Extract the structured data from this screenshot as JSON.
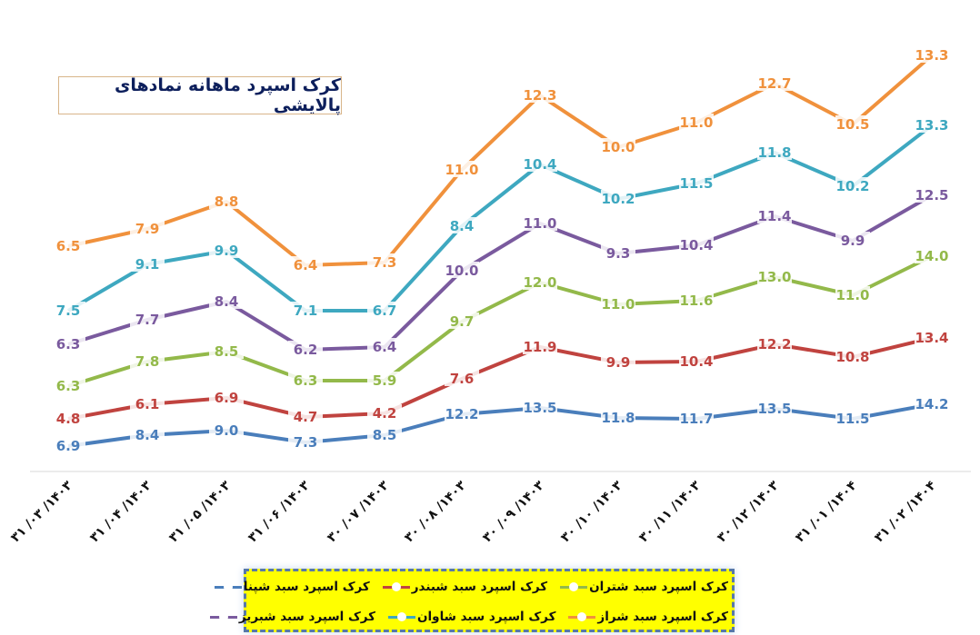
{
  "chart_data": {
    "type": "line",
    "title": "کرک اسپرد ماهانه نمادهای پالایشی",
    "xlabel": "",
    "ylabel": "",
    "grid": false,
    "legend_position": "bottom",
    "categories": [
      "۱۴۰۳/۰۳/۳۱",
      "۱۴۰۳/۰۴/۳۱",
      "۱۴۰۳/۰۵/۳۱",
      "۱۴۰۳/۰۶/۳۱",
      "۱۴۰۳/۰۷/۳۰",
      "۱۴۰۳/۰۸/۳۰",
      "۱۴۰۳/۰۹/۳۰",
      "۱۴۰۳/۱۰/۳۰",
      "۱۴۰۳/۱۱/۳۰",
      "۱۴۰۳/۱۲/۳۰",
      "۱۴۰۴/۰۱/۳۱",
      "۱۴۰۴/۰۲/۳۱"
    ],
    "series": [
      {
        "name": "کرک اسپرد سبد شراز",
        "color": "#f0913c",
        "values": [
          6.5,
          7.9,
          8.8,
          6.4,
          7.3,
          11.0,
          12.3,
          10.0,
          11.0,
          12.7,
          10.5,
          13.3
        ]
      },
      {
        "name": "کرک اسپرد سبد شاوان",
        "color": "#3ea8c0",
        "values": [
          7.5,
          9.1,
          9.9,
          7.1,
          6.7,
          8.4,
          10.4,
          10.2,
          11.5,
          11.8,
          10.2,
          13.3
        ]
      },
      {
        "name": "کرک اسپرد سبد شبریز",
        "color": "#7a5a9e",
        "values": [
          6.3,
          7.7,
          8.4,
          6.2,
          6.4,
          10.0,
          11.0,
          9.3,
          10.4,
          11.4,
          9.9,
          12.5
        ]
      },
      {
        "name": "کرک اسپرد سبد شتران",
        "color": "#93b94a",
        "values": [
          6.3,
          7.8,
          8.5,
          6.3,
          5.9,
          9.7,
          12.0,
          11.0,
          11.6,
          13.0,
          11.0,
          14.0
        ]
      },
      {
        "name": "کرک اسپرد سبد شبندر",
        "color": "#c0433f",
        "values": [
          4.8,
          6.1,
          6.9,
          4.7,
          4.2,
          7.6,
          11.9,
          9.9,
          10.4,
          12.2,
          10.8,
          13.4
        ]
      },
      {
        "name": "کرک اسپرد سبد شپنا",
        "color": "#4a7ebb",
        "values": [
          6.9,
          8.4,
          9.0,
          7.3,
          8.5,
          12.2,
          13.5,
          11.8,
          11.7,
          13.5,
          11.5,
          14.2
        ]
      }
    ]
  },
  "layout": {
    "x_positions": [
      75,
      162,
      249,
      336,
      423,
      508,
      594,
      680,
      766,
      852,
      938,
      1025
    ],
    "point_y": [
      [
        262,
        243,
        213,
        283,
        280,
        178,
        96,
        153,
        126,
        83,
        128,
        52
      ],
      [
        333,
        282,
        267,
        333,
        333,
        240,
        172,
        210,
        193,
        159,
        196,
        129
      ],
      [
        370,
        343,
        323,
        376,
        373,
        289,
        237,
        270,
        261,
        229,
        256,
        206
      ],
      [
        416,
        389,
        378,
        410,
        410,
        345,
        302,
        326,
        322,
        296,
        316,
        273
      ],
      [
        452,
        436,
        429,
        450,
        446,
        408,
        373,
        390,
        389,
        370,
        384,
        363
      ],
      [
        482,
        470,
        465,
        478,
        470,
        447,
        440,
        451,
        452,
        441,
        452,
        436
      ]
    ]
  },
  "legend": {
    "rows": [
      [
        {
          "label": "کرک اسپرد سبد شتران",
          "color": "#93b94a"
        },
        {
          "label": "کرک اسپرد سبد شبندر",
          "color": "#c0433f"
        },
        {
          "label": "کرک اسپرد سبد شپنا",
          "color": "#4a7ebb"
        }
      ],
      [
        {
          "label": "کرک اسپرد سبد شراز",
          "color": "#f0913c"
        },
        {
          "label": "کرک اسپرد سبد شاوان",
          "color": "#3ea8c0"
        },
        {
          "label": "کرک اسپرد سبد شبریز",
          "color": "#7a5a9e"
        }
      ]
    ]
  }
}
